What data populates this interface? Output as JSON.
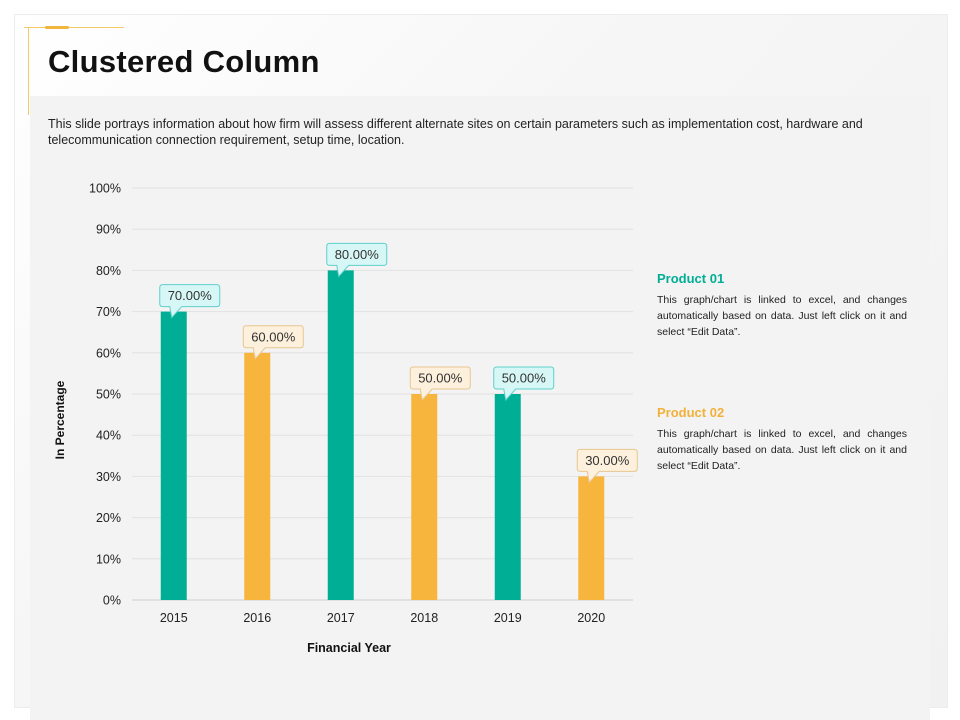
{
  "slide": {
    "title": "Clustered Column",
    "description": "This slide portrays information about how firm will assess different alternate sites on certain parameters such as implementation cost, hardware and telecommunication connection requirement, setup time, location."
  },
  "legend": [
    {
      "name": "Product 01",
      "color": "#00ae96",
      "text": "This graph/chart  is linked to excel, and changes automatically based on data.  Just left click on it and select “Edit Data”."
    },
    {
      "name": "Product 02",
      "color": "#f7b53e",
      "text": "This graph/chart  is linked to excel, and changes automatically based on data.  Just left click on it and select “Edit Data”."
    }
  ],
  "chart_data": {
    "type": "bar",
    "xlabel": "Financial Year",
    "ylabel": "In Percentage",
    "ylim": [
      0,
      100
    ],
    "yticks": [
      "0%",
      "10%",
      "20%",
      "30%",
      "40%",
      "50%",
      "60%",
      "70%",
      "80%",
      "90%",
      "100%"
    ],
    "grid": true,
    "categories": [
      "2015",
      "2016",
      "2017",
      "2018",
      "2019",
      "2020"
    ],
    "values": [
      70,
      60,
      80,
      50,
      50,
      30
    ],
    "series_index": [
      0,
      1,
      0,
      1,
      0,
      1
    ],
    "data_labels": [
      "70.00%",
      "60.00%",
      "80.00%",
      "50.00%",
      "50.00%",
      "30.00%"
    ],
    "series": [
      {
        "name": "Product 01",
        "color": "#00ae96",
        "callout_fill": "#d6f7f5",
        "callout_stroke": "#5fd0cc"
      },
      {
        "name": "Product 02",
        "color": "#f7b53e",
        "callout_fill": "#fdf0dc",
        "callout_stroke": "#e7c690"
      }
    ]
  }
}
